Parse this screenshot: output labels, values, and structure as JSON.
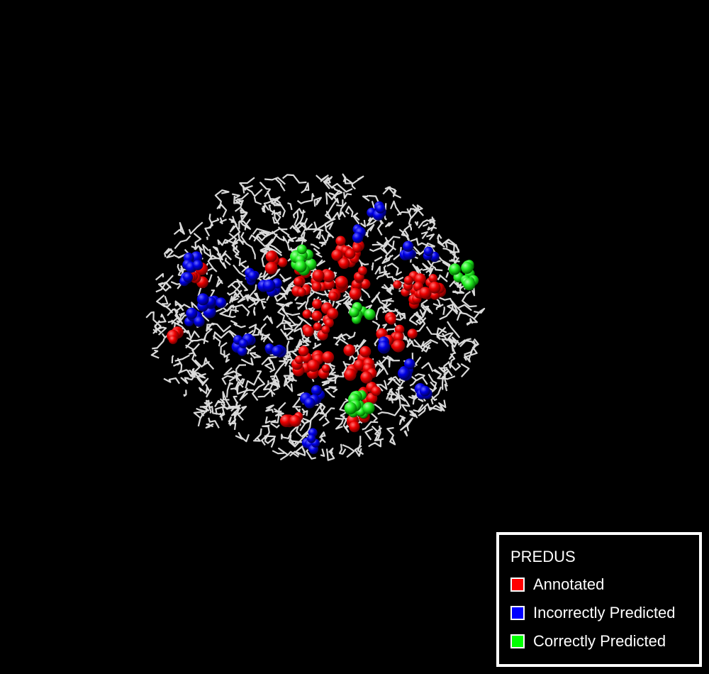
{
  "legend": {
    "title": "PREDUS",
    "items": [
      {
        "key": "annotated",
        "label": "Annotated",
        "color": "#ff0000"
      },
      {
        "key": "incorrect",
        "label": "Incorrectly Predicted",
        "color": "#0000ff"
      },
      {
        "key": "correct",
        "label": "Correctly Predicted",
        "color": "#00ff00"
      }
    ]
  },
  "colors": {
    "background": "#000000",
    "backbone": "#d9d9d9",
    "annotated": "#ff0000",
    "incorrect": "#0000ff",
    "correct": "#00ff00"
  }
}
